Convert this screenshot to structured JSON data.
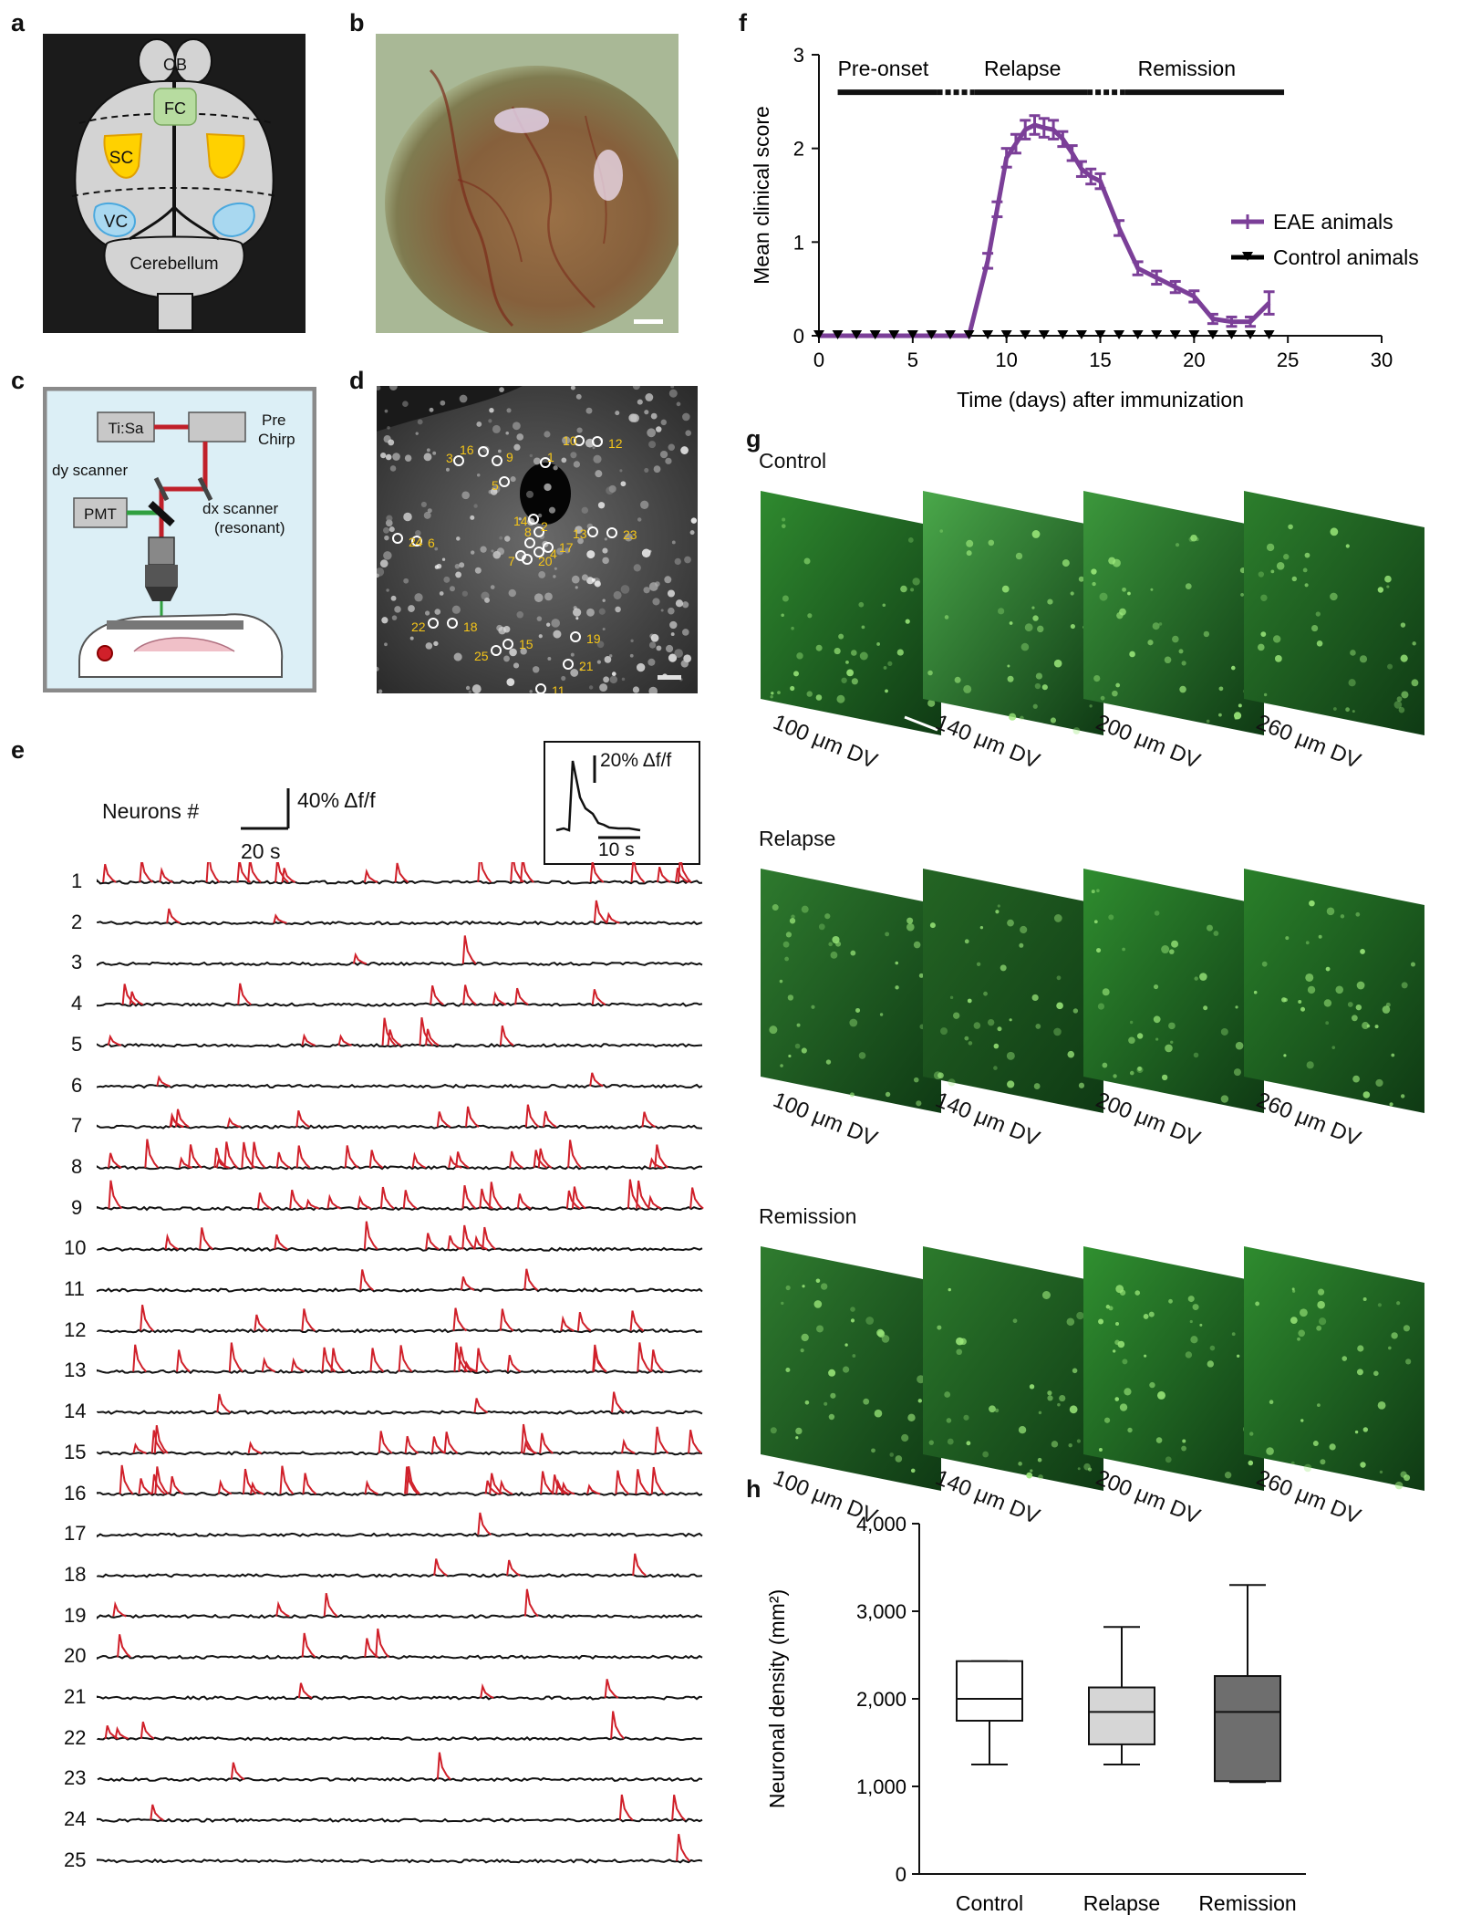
{
  "panels": {
    "a": "a",
    "b": "b",
    "c": "c",
    "d": "d",
    "e": "e",
    "f": "f",
    "g": "g",
    "h": "h"
  },
  "panel_a": {
    "ob": "OB",
    "fc": "FC",
    "sc": "SC",
    "vc": "VC",
    "cerebellum": "Cerebellum"
  },
  "panel_c": {
    "laser": "Ti:Sa",
    "prechirp_1": "Pre",
    "prechirp_2": "Chirp",
    "dy": "dy scanner",
    "dx_1": "dx scanner",
    "dx_2": "(resonant)",
    "pmt": "PMT"
  },
  "panel_d": {
    "rois": [
      {
        "id": "1"
      },
      {
        "id": "2"
      },
      {
        "id": "3"
      },
      {
        "id": "4"
      },
      {
        "id": "5"
      },
      {
        "id": "6"
      },
      {
        "id": "7"
      },
      {
        "id": "8"
      },
      {
        "id": "9"
      },
      {
        "id": "10"
      },
      {
        "id": "11"
      },
      {
        "id": "12"
      },
      {
        "id": "13"
      },
      {
        "id": "14"
      },
      {
        "id": "15"
      },
      {
        "id": "16"
      },
      {
        "id": "17"
      },
      {
        "id": "18"
      },
      {
        "id": "19"
      },
      {
        "id": "20"
      },
      {
        "id": "21"
      },
      {
        "id": "22"
      },
      {
        "id": "23"
      },
      {
        "id": "24"
      },
      {
        "id": "25"
      }
    ]
  },
  "panel_e": {
    "header": "Neurons #",
    "scale_y": "40% Δf/f",
    "scale_x": "20 s",
    "inset_y": "20% Δf/f",
    "inset_x": "10 s",
    "neurons": [
      "1",
      "2",
      "3",
      "4",
      "5",
      "6",
      "7",
      "8",
      "9",
      "10",
      "11",
      "12",
      "13",
      "14",
      "15",
      "16",
      "17",
      "18",
      "19",
      "20",
      "21",
      "22",
      "23",
      "24",
      "25"
    ],
    "trace_color": "#111111",
    "event_color": "#d0202a"
  },
  "panel_g": {
    "rows": [
      {
        "label": "Control",
        "depths": [
          "100 μm DV",
          "140 μm DV",
          "200 μm DV",
          "260 μm DV"
        ]
      },
      {
        "label": "Relapse",
        "depths": [
          "100 μm DV",
          "140 μm DV",
          "200 μm DV",
          "260 μm DV"
        ]
      },
      {
        "label": "Remission",
        "depths": [
          "100 μm DV",
          "140 μm DV",
          "200 μm DV",
          "260 μm DV"
        ]
      }
    ]
  },
  "chart_data": [
    {
      "type": "line",
      "panel": "f",
      "xlabel": "Time (days) after immunization",
      "ylabel": "Mean clinical score",
      "xlim": [
        0,
        30
      ],
      "ylim": [
        0,
        3
      ],
      "xticks": [
        "0",
        "5",
        "10",
        "15",
        "20",
        "25",
        "30"
      ],
      "yticks": [
        "0",
        "1",
        "2",
        "3"
      ],
      "phases": [
        {
          "label": "Pre-onset"
        },
        {
          "label": "Relapse"
        },
        {
          "label": "Remission"
        }
      ],
      "legend_position": "right",
      "series": [
        {
          "name": "EAE animals",
          "color": "#7b3f98",
          "x": [
            0,
            1,
            2,
            3,
            4,
            5,
            6,
            7,
            8,
            9,
            9.5,
            10,
            10.5,
            11,
            11.5,
            12,
            12.5,
            13,
            13.5,
            14,
            14.5,
            15,
            16,
            17,
            18,
            19,
            20,
            21,
            22,
            23,
            24
          ],
          "y": [
            0,
            0,
            0,
            0,
            0,
            0,
            0,
            0,
            0,
            0.8,
            1.35,
            1.9,
            2.05,
            2.2,
            2.25,
            2.22,
            2.2,
            2.1,
            1.95,
            1.78,
            1.7,
            1.65,
            1.15,
            0.72,
            0.62,
            0.52,
            0.42,
            0.18,
            0.15,
            0.15,
            0.35
          ],
          "err": [
            0,
            0,
            0,
            0,
            0,
            0,
            0,
            0,
            0,
            0.08,
            0.08,
            0.1,
            0.1,
            0.1,
            0.1,
            0.1,
            0.1,
            0.08,
            0.08,
            0.08,
            0.08,
            0.08,
            0.08,
            0.07,
            0.07,
            0.06,
            0.06,
            0.05,
            0.05,
            0.05,
            0.12
          ]
        },
        {
          "name": "Control animals",
          "color": "#000000",
          "x": [
            0,
            1,
            2,
            3,
            4,
            5,
            6,
            7,
            8,
            9,
            10,
            11,
            12,
            13,
            14,
            15,
            16,
            17,
            18,
            19,
            20,
            21,
            22,
            23,
            24
          ],
          "y": [
            0,
            0,
            0,
            0,
            0,
            0,
            0,
            0,
            0,
            0,
            0,
            0,
            0,
            0,
            0,
            0,
            0,
            0,
            0,
            0,
            0,
            0,
            0,
            0,
            0
          ]
        }
      ]
    },
    {
      "type": "box",
      "panel": "h",
      "ylabel": "Neuronal density (mm²)",
      "ylim": [
        0,
        4000
      ],
      "yticks": [
        "0",
        "1,000",
        "2,000",
        "3,000",
        "4,000"
      ],
      "categories": [
        "Control",
        "Relapse",
        "Remission"
      ],
      "colors": [
        "#ffffff",
        "#d6d6d6",
        "#6e6e6e"
      ],
      "boxes": [
        {
          "min": 1250,
          "q1": 1750,
          "median": 2000,
          "q3": 2430,
          "max": 2430
        },
        {
          "min": 1250,
          "q1": 1480,
          "median": 1850,
          "q3": 2130,
          "max": 2820
        },
        {
          "min": 1050,
          "q1": 1060,
          "median": 1850,
          "q3": 2260,
          "max": 3300
        }
      ]
    }
  ]
}
